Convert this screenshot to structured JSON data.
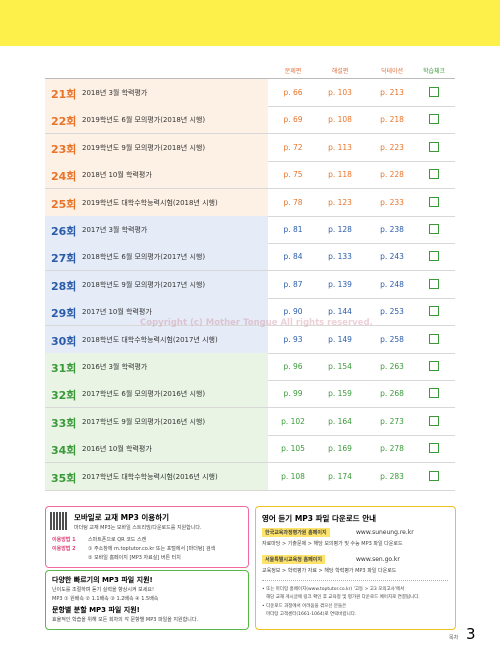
{
  "header": {
    "columns": [
      "문제편",
      "해설편",
      "딕테이션",
      "학습체크"
    ]
  },
  "rows": [
    [
      "21회",
      "2018년 3월 학력평가",
      "p. 66",
      "p. 103",
      "p. 213"
    ],
    [
      "22회",
      "2019학년도 6월 모의평가(2018년 시행)",
      "p. 69",
      "p. 108",
      "p. 218"
    ],
    [
      "23회",
      "2019학년도 9월 모의평가(2018년 시행)",
      "p. 72",
      "p. 113",
      "p. 223"
    ],
    [
      "24회",
      "2018년 10월 학력평가",
      "p. 75",
      "p. 118",
      "p. 228"
    ],
    [
      "25회",
      "2019학년도 대학수학능력시험(2018년 시행)",
      "p. 78",
      "p. 123",
      "p. 233"
    ],
    [
      "26회",
      "2017년 3월 학력평가",
      "p. 81",
      "p. 128",
      "p. 238"
    ],
    [
      "27회",
      "2018학년도 6월 모의평가(2017년 시행)",
      "p. 84",
      "p. 133",
      "p. 243"
    ],
    [
      "28회",
      "2018학년도 9월 모의평가(2017년 시행)",
      "p. 87",
      "p. 139",
      "p. 248"
    ],
    [
      "29회",
      "2017년 10월 학력평가",
      "p. 90",
      "p. 144",
      "p. 253"
    ],
    [
      "30회",
      "2018학년도 대학수학능력시험(2017년 시행)",
      "p. 93",
      "p. 149",
      "p. 258"
    ],
    [
      "31회",
      "2016년 3월 학력평가",
      "p. 96",
      "p. 154",
      "p. 263"
    ],
    [
      "32회",
      "2017학년도 6월 모의평가(2016년 시행)",
      "p. 99",
      "p. 159",
      "p. 268"
    ],
    [
      "33회",
      "2017학년도 9월 모의평가(2016년 시행)",
      "p. 102",
      "p. 164",
      "p. 273"
    ],
    [
      "34회",
      "2016년 10월 학력평가",
      "p. 105",
      "p. 169",
      "p. 278"
    ],
    [
      "35회",
      "2017학년도 대학수학능력시험(2016년 시행)",
      "p. 108",
      "p. 174",
      "p. 283"
    ]
  ],
  "watermark": "Copyright (c) Mother Tongue All rights reserved.",
  "mobile": {
    "title": "모바일로 교재 MP3 이용하기",
    "desc": "마더텅 교재 MP3는 모바일 스트리밍/다운로드를 지원합니다.",
    "m1": "이용방법 1",
    "m1t": "스마트폰으로 QR 코드 스캔",
    "m2": "이용방법 2",
    "m2a": "① 주소창에 m.toptutor.co.kr 또는 포털에서 [마더텅] 검색",
    "m2b": "② 모바일 홈페이지 [MP3 자료실] 버튼 터치"
  },
  "speed": {
    "title": "다양한 빠르기의 MP3 파일 지원!",
    "desc": "난이도를 조절하며 듣기 실력을 향상시켜 보세요!",
    "list": "MP3  ① 원배속  ② 1.1배속  ③ 1.2배속  ④ 1.5배속",
    "title2": "문항별 분할 MP3 파일 지원!",
    "desc2": "효율적인 학습을 위해 모든 회차의 각 문항별 MP3 파일을 지원합니다."
  },
  "download": {
    "title": "영어 듣기 MP3 파일 다운로드 안내",
    "s1": "한국교육과정평가원 홈페이지",
    "u1": "www.suneung.re.kr",
    "p1": "자료마당 > 기출문제 > 해당 모의평가 및 수능 MP3 파일 다운로드",
    "s2": "서울특별시교육청 홈페이지",
    "u2": "www.sen.go.kr",
    "p2": "교육정보 > 학력평가 자료 > 해당 학력평가 MP3 파일 다운로드",
    "n1": "• 또는 마더텅 홈페이지(www.toptutor.co.kr) '고등 > 고3 모의고사'에서",
    "n2": "해당 교재 게시글에 링크 확인 후 교육청 및 평가원 다운로드 페이지로 연결됩니다.",
    "n3": "• 다운로드 과정에서 어려움을 겪으신 분들은",
    "n4": "마더텅 고객센터(1661-1064)로 연락바랍니다."
  },
  "footer": {
    "label": "목차",
    "page": "3"
  }
}
